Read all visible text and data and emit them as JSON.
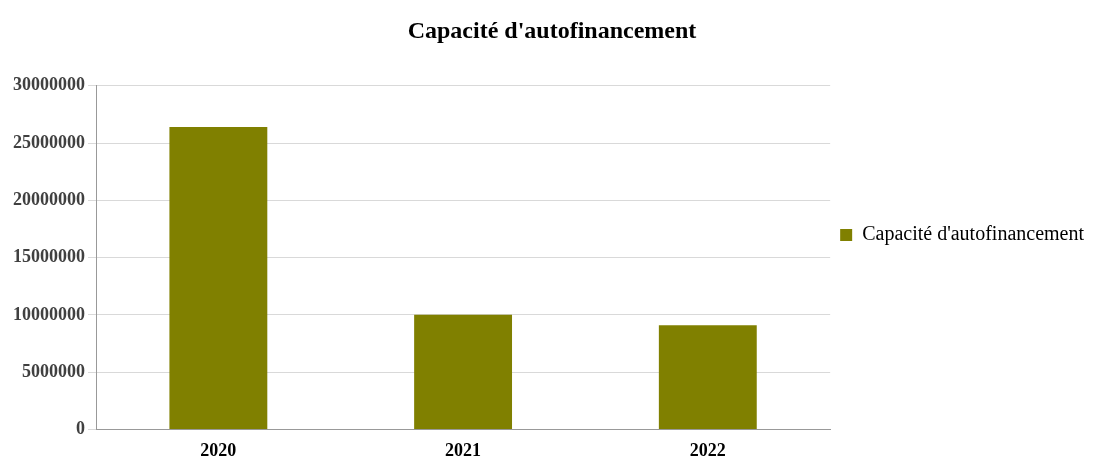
{
  "chart_data": {
    "type": "bar",
    "title": "Capacité d'autofinancement",
    "categories": [
      "2020",
      "2021",
      "2022"
    ],
    "series": [
      {
        "name": "Capacité d'autofinancement",
        "color": "#808000",
        "values": [
          26400000,
          10000000,
          9100000
        ]
      }
    ],
    "ylim": [
      0,
      30000000
    ],
    "yticks": [
      0,
      5000000,
      10000000,
      15000000,
      20000000,
      25000000,
      30000000
    ],
    "grid": "y",
    "legend": "right"
  }
}
